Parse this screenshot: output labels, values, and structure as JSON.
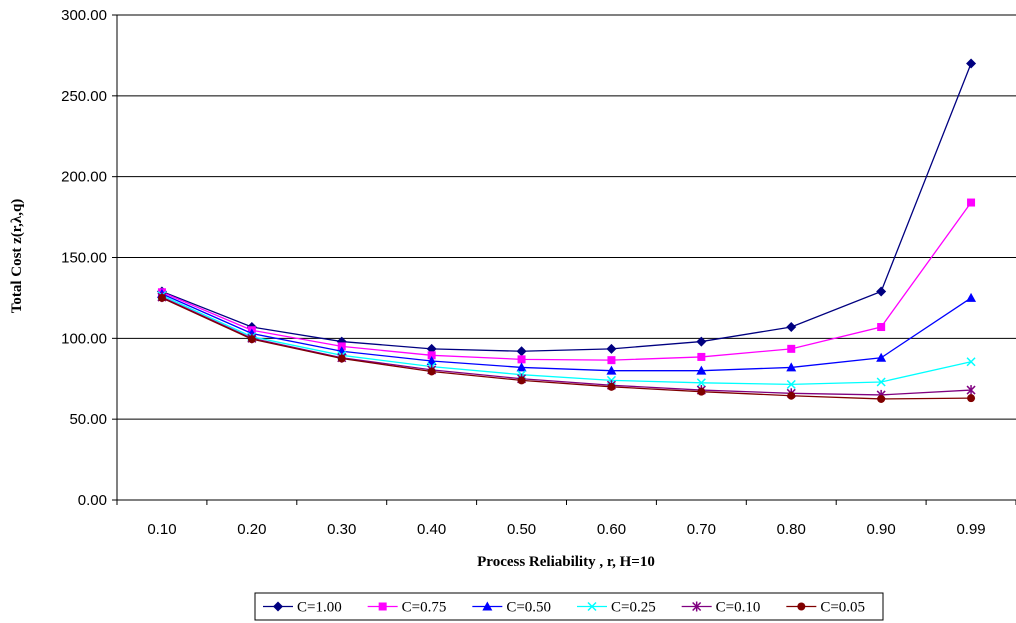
{
  "chart_data": {
    "type": "line",
    "title": "",
    "xlabel": "Process Reliability , r, H=10",
    "ylabel": "Total Cost z(r,λ,q)",
    "categories": [
      "0.10",
      "0.20",
      "0.30",
      "0.40",
      "0.50",
      "0.60",
      "0.70",
      "0.80",
      "0.90",
      "0.99"
    ],
    "ylim": [
      0,
      300
    ],
    "yticks": [
      "0.00",
      "50.00",
      "100.00",
      "150.00",
      "200.00",
      "250.00",
      "300.00"
    ],
    "grid": "horizontal",
    "legend_position": "bottom",
    "series": [
      {
        "name": "C=1.00",
        "color": "#000080",
        "marker": "diamond",
        "values": [
          129,
          107,
          98,
          93.5,
          92,
          93.5,
          98,
          107,
          129,
          270
        ]
      },
      {
        "name": "C=0.75",
        "color": "#FF00FF",
        "marker": "square",
        "values": [
          128.5,
          105,
          95,
          89.5,
          87,
          86.5,
          88.5,
          93.5,
          107,
          184
        ]
      },
      {
        "name": "C=0.50",
        "color": "#0000FF",
        "marker": "triangle",
        "values": [
          127.5,
          103,
          92,
          86,
          82,
          80,
          80,
          82,
          88,
          125
        ]
      },
      {
        "name": "C=0.25",
        "color": "#00FFFF",
        "marker": "x",
        "values": [
          126.5,
          101,
          89.5,
          82.5,
          77.5,
          74,
          72.5,
          71.5,
          73,
          85.5
        ]
      },
      {
        "name": "C=0.10",
        "color": "#800080",
        "marker": "star",
        "values": [
          125.5,
          100,
          88,
          80.5,
          75,
          71,
          68,
          66,
          65,
          68
        ]
      },
      {
        "name": "C=0.05",
        "color": "#800000",
        "marker": "circle",
        "values": [
          125,
          99.5,
          87.5,
          79.5,
          74,
          70,
          67,
          64.5,
          62.5,
          63
        ]
      }
    ]
  }
}
